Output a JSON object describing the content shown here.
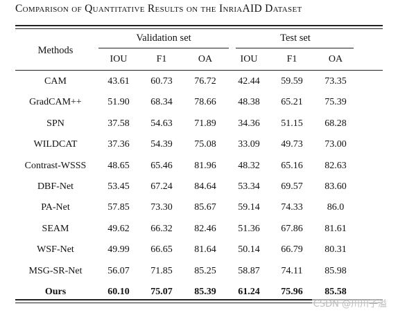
{
  "caption": "Comparison of Quantitative Results on the InriaAID Dataset",
  "header": {
    "methods": "Methods",
    "validation_group": "Validation  set",
    "test_group": "Test set",
    "columns": [
      "IOU",
      "F1",
      "OA",
      "IOU",
      "F1",
      "OA"
    ]
  },
  "rows": [
    {
      "method": "CAM",
      "values": [
        "43.61",
        "60.73",
        "76.72",
        "42.44",
        "59.59",
        "73.35"
      ],
      "bold": false
    },
    {
      "method": "GradCAM++",
      "values": [
        "51.90",
        "68.34",
        "78.66",
        "48.38",
        "65.21",
        "75.39"
      ],
      "bold": false
    },
    {
      "method": "SPN",
      "values": [
        "37.58",
        "54.63",
        "71.89",
        "34.36",
        "51.15",
        "68.28"
      ],
      "bold": false
    },
    {
      "method": "WILDCAT",
      "values": [
        "37.36",
        "54.39",
        "75.08",
        "33.09",
        "49.73",
        "73.00"
      ],
      "bold": false
    },
    {
      "method": "Contrast-WSSS",
      "values": [
        "48.65",
        "65.46",
        "81.96",
        "48.32",
        "65.16",
        "82.63"
      ],
      "bold": false
    },
    {
      "method": "DBF-Net",
      "values": [
        "53.45",
        "67.24",
        "84.64",
        "53.34",
        "69.57",
        "83.60"
      ],
      "bold": false
    },
    {
      "method": "PA-Net",
      "values": [
        "57.85",
        "73.30",
        "85.67",
        "59.14",
        "74.33",
        "86.0"
      ],
      "bold": false
    },
    {
      "method": "SEAM",
      "values": [
        "49.62",
        "66.32",
        "82.46",
        "51.36",
        "67.86",
        "81.61"
      ],
      "bold": false
    },
    {
      "method": "WSF-Net",
      "values": [
        "49.99",
        "66.65",
        "81.64",
        "50.14",
        "66.79",
        "80.31"
      ],
      "bold": false
    },
    {
      "method": "MSG-SR-Net",
      "values": [
        "56.07",
        "71.85",
        "85.25",
        "58.87",
        "74.11",
        "85.98"
      ],
      "bold": false
    },
    {
      "method": "Ours",
      "values": [
        "60.10",
        "75.07",
        "85.39",
        "61.24",
        "75.96",
        "85.58"
      ],
      "bold": true
    }
  ],
  "watermark": "CSDN @川川子溢"
}
